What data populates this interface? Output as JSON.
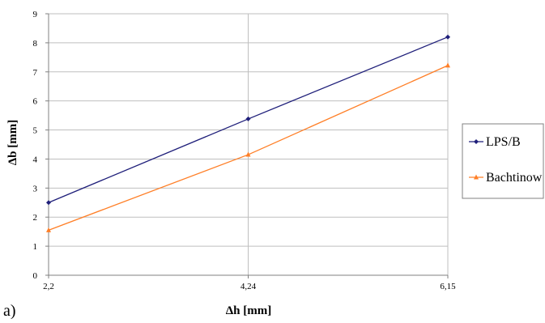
{
  "chart_data": {
    "type": "line",
    "panel_label": "a)",
    "xlabel": "Δh [mm]",
    "ylabel": "Δb [mm]",
    "categories": [
      "2,2",
      "4,24",
      "6,15"
    ],
    "ylim": [
      0,
      9
    ],
    "yticks": [
      0,
      1,
      2,
      3,
      4,
      5,
      6,
      7,
      8,
      9
    ],
    "grid": true,
    "legend_position": "right",
    "series": [
      {
        "name": "LPS/B",
        "values": [
          2.5,
          5.38,
          8.2
        ],
        "color": "#1f1f7a",
        "marker": "diamond"
      },
      {
        "name": "Bachtinow",
        "values": [
          1.55,
          4.15,
          7.22
        ],
        "color": "#ff7f27",
        "marker": "triangle"
      }
    ],
    "colors": {
      "grid": "#bfbfbf",
      "axis": "#808080",
      "legend_border": "#808080"
    }
  }
}
